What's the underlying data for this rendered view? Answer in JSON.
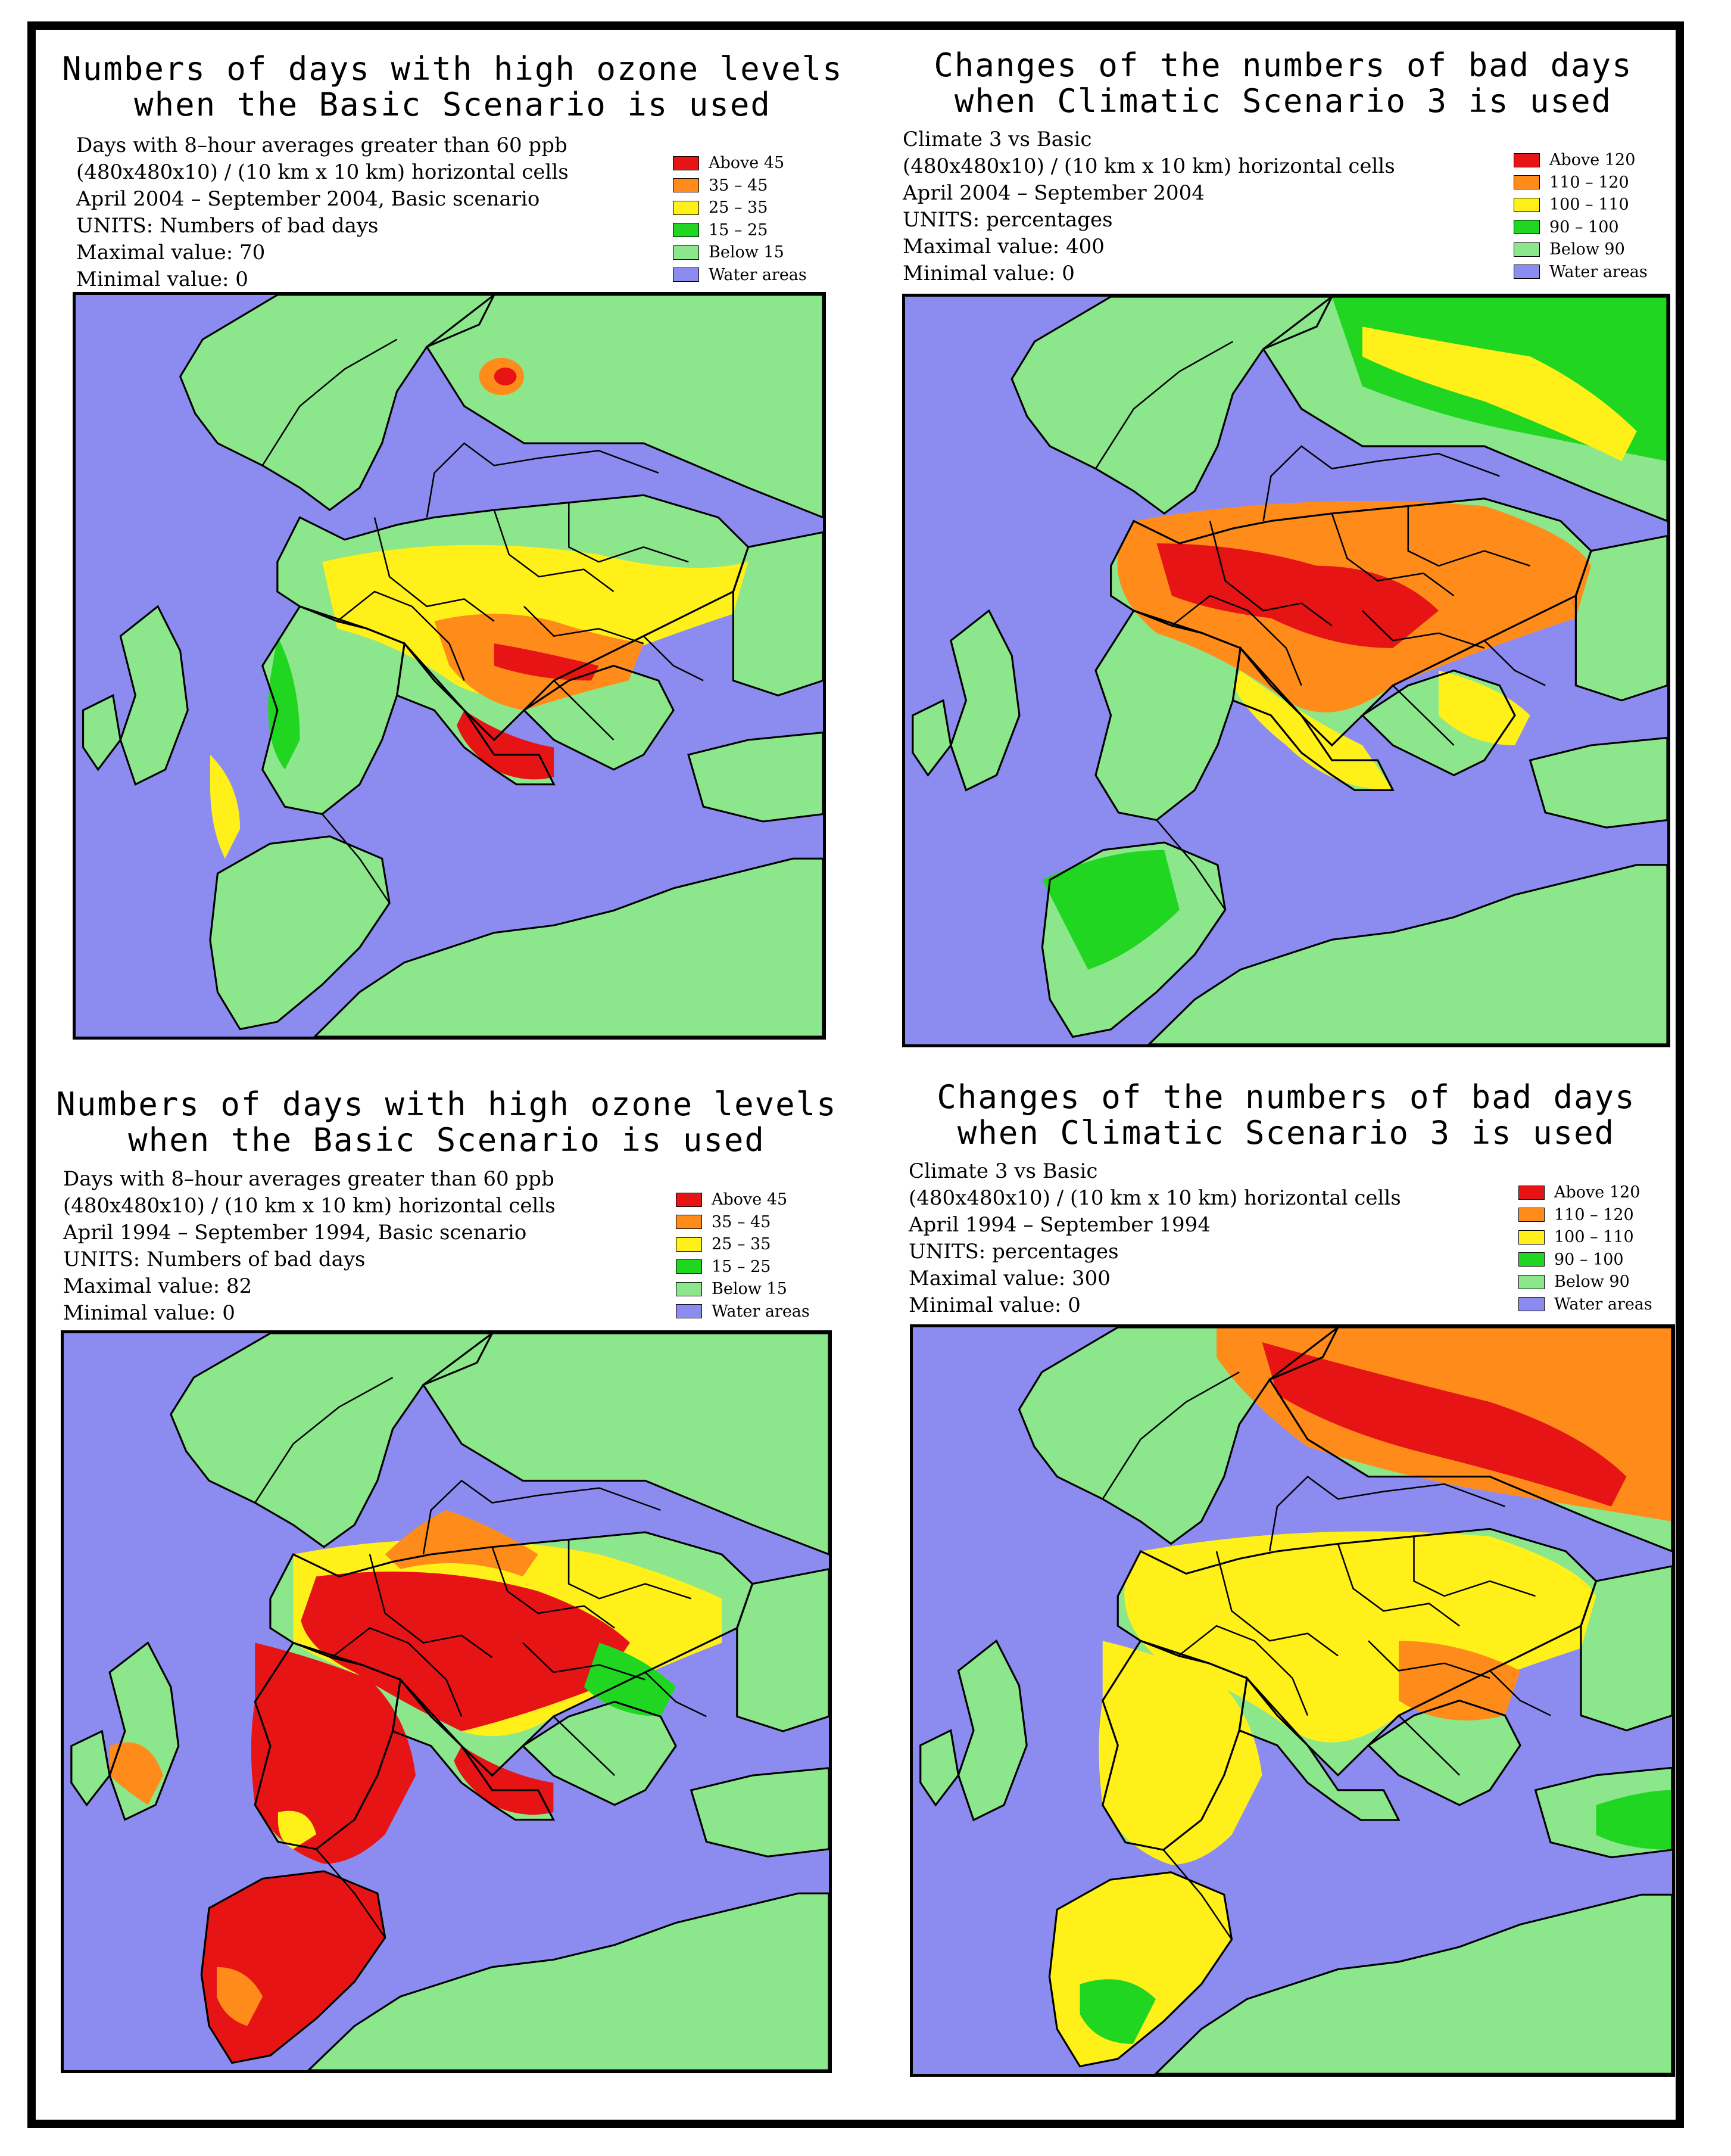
{
  "colors": {
    "water": "#8c8cf0",
    "land_low": "#8ce68c",
    "green": "#21d621",
    "yellow": "#fff01a",
    "orange": "#ff8c1a",
    "red": "#e61414",
    "border": "#000000"
  },
  "panels": [
    {
      "title_line1": "Numbers of days with high ozone levels",
      "title_line2": "when the Basic Scenario is used",
      "info": [
        "Days with 8–hour averages greater than 60 ppb",
        "(480x480x10) / (10 km x 10 km) horizontal cells",
        "April 2004 – September 2004, Basic scenario",
        "UNITS: Numbers of bad days",
        "Maximal value:   70",
        "Minimal value:    0"
      ],
      "legend": [
        {
          "label": "Above  45",
          "color": "#e61414"
        },
        {
          "label": "35  –  45",
          "color": "#ff8c1a"
        },
        {
          "label": "25  –  35",
          "color": "#fff01a"
        },
        {
          "label": "15  –  25",
          "color": "#21d621"
        },
        {
          "label": "Below  15",
          "color": "#8ce68c"
        },
        {
          "label": "Water areas",
          "color": "#8c8cf0"
        }
      ],
      "map_pattern": "basic2004"
    },
    {
      "title_line1": "Changes of the numbers of bad days",
      "title_line2": "when Climatic Scenario 3 is used",
      "info": [
        "Climate 3 vs Basic",
        "(480x480x10) / (10 km x 10 km) horizontal cells",
        "April 2004 – September 2004",
        "UNITS: percentages",
        "Maximal value:  400",
        "Minimal value:     0"
      ],
      "legend": [
        {
          "label": "Above 120",
          "color": "#e61414"
        },
        {
          "label": "110  –  120",
          "color": "#ff8c1a"
        },
        {
          "label": "100  –  110",
          "color": "#fff01a"
        },
        {
          "label": " 90  –  100",
          "color": "#21d621"
        },
        {
          "label": "Below  90",
          "color": "#8ce68c"
        },
        {
          "label": "Water areas",
          "color": "#8c8cf0"
        }
      ],
      "map_pattern": "change2004"
    },
    {
      "title_line1": "Numbers of days with high ozone levels",
      "title_line2": "when the Basic Scenario is used",
      "info": [
        "Days with 8–hour averages greater than 60 ppb",
        "(480x480x10) / (10 km x 10 km) horizontal cells",
        "April 1994 – September 1994, Basic scenario",
        "UNITS: Numbers of bad days",
        "Maximal value:   82",
        "Minimal value:    0"
      ],
      "legend": [
        {
          "label": "Above  45",
          "color": "#e61414"
        },
        {
          "label": "35  –  45",
          "color": "#ff8c1a"
        },
        {
          "label": "25  –  35",
          "color": "#fff01a"
        },
        {
          "label": "15  –  25",
          "color": "#21d621"
        },
        {
          "label": "Below  15",
          "color": "#8ce68c"
        },
        {
          "label": "Water areas",
          "color": "#8c8cf0"
        }
      ],
      "map_pattern": "basic1994"
    },
    {
      "title_line1": "Changes of the numbers of bad days",
      "title_line2": "when Climatic Scenario 3 is used",
      "info": [
        "Climate 3 vs Basic",
        "(480x480x10) / (10 km x 10 km) horizontal cells",
        "April 1994 – September 1994",
        "UNITS: percentages",
        "Maximal value:  300",
        "Minimal value:     0"
      ],
      "legend": [
        {
          "label": "Above 120",
          "color": "#e61414"
        },
        {
          "label": "110  –  120",
          "color": "#ff8c1a"
        },
        {
          "label": "100  –  110",
          "color": "#fff01a"
        },
        {
          "label": " 90  –  100",
          "color": "#21d621"
        },
        {
          "label": "Below  90",
          "color": "#8ce68c"
        },
        {
          "label": "Water areas",
          "color": "#8c8cf0"
        }
      ],
      "map_pattern": "change1994"
    }
  ]
}
